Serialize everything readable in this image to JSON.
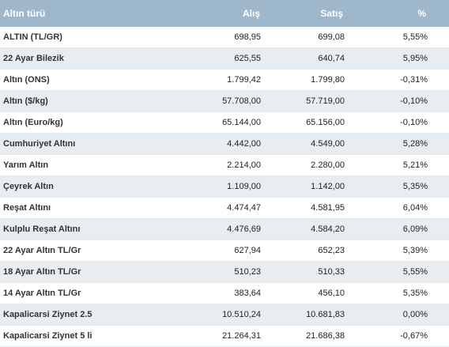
{
  "table": {
    "headers": {
      "name": "Altın türü",
      "buy": "Alış",
      "sell": "Satış",
      "change": "%"
    },
    "rows": [
      {
        "name": "ALTIN (TL/GR)",
        "buy": "698,95",
        "sell": "699,08",
        "change": "5,55%"
      },
      {
        "name": "22 Ayar Bilezik",
        "buy": "625,55",
        "sell": "640,74",
        "change": "5,95%"
      },
      {
        "name": "Altın (ONS)",
        "buy": "1.799,42",
        "sell": "1.799,80",
        "change": "-0,31%"
      },
      {
        "name": "Altın ($/kg)",
        "buy": "57.708,00",
        "sell": "57.719,00",
        "change": "-0,10%"
      },
      {
        "name": "Altın (Euro/kg)",
        "buy": "65.144,00",
        "sell": "65.156,00",
        "change": "-0,10%"
      },
      {
        "name": "Cumhuriyet Altını",
        "buy": "4.442,00",
        "sell": "4.549,00",
        "change": "5,28%"
      },
      {
        "name": "Yarım Altın",
        "buy": "2.214,00",
        "sell": "2.280,00",
        "change": "5,21%"
      },
      {
        "name": "Çeyrek Altın",
        "buy": "1.109,00",
        "sell": "1.142,00",
        "change": "5,35%"
      },
      {
        "name": "Reşat Altını",
        "buy": "4.474,47",
        "sell": "4.581,95",
        "change": "6,04%"
      },
      {
        "name": "Kulplu Reşat Altını",
        "buy": "4.476,69",
        "sell": "4.584,20",
        "change": "6,09%"
      },
      {
        "name": "22 Ayar Altın TL/Gr",
        "buy": "627,94",
        "sell": "652,23",
        "change": "5,39%"
      },
      {
        "name": "18 Ayar Altın TL/Gr",
        "buy": "510,23",
        "sell": "510,33",
        "change": "5,55%"
      },
      {
        "name": "14 Ayar Altın TL/Gr",
        "buy": "383,64",
        "sell": "456,10",
        "change": "5,35%"
      },
      {
        "name": "Kapalicarsi Ziynet 2.5",
        "buy": "10.510,24",
        "sell": "10.681,83",
        "change": "0,00%"
      },
      {
        "name": "Kapalicarsi Ziynet 5 li",
        "buy": "21.264,31",
        "sell": "21.686,38",
        "change": "-0,67%"
      }
    ]
  }
}
